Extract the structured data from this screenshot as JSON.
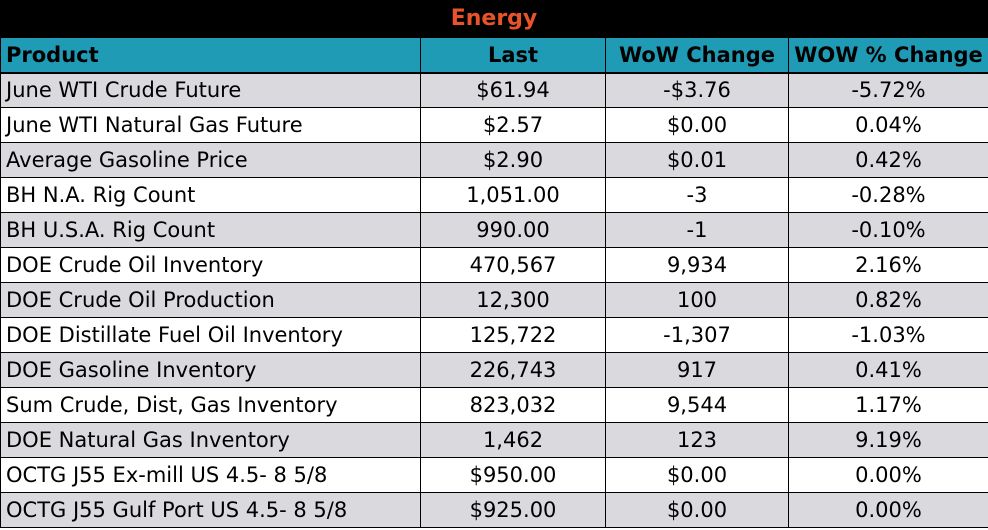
{
  "title": "Energy",
  "colors": {
    "title_bg": "#000000",
    "title_text": "#e8532a",
    "header_bg": "#1f9bb6",
    "row_alt_bg": "#d9d9de",
    "row_bg": "#ffffff"
  },
  "headers": [
    "Product",
    "Last",
    "WoW Change",
    "WOW % Change"
  ],
  "rows": [
    [
      "June WTI Crude Future",
      "$61.94",
      "-$3.76",
      "-5.72%"
    ],
    [
      "June WTI Natural Gas Future",
      "$2.57",
      "$0.00",
      "0.04%"
    ],
    [
      "Average Gasoline Price",
      "$2.90",
      "$0.01",
      "0.42%"
    ],
    [
      "BH N.A. Rig Count",
      "1,051.00",
      "-3",
      "-0.28%"
    ],
    [
      "BH U.S.A. Rig Count",
      "990.00",
      "-1",
      "-0.10%"
    ],
    [
      "DOE Crude Oil Inventory",
      "470,567",
      "9,934",
      "2.16%"
    ],
    [
      "DOE Crude Oil Production",
      "12,300",
      "100",
      "0.82%"
    ],
    [
      "DOE Distillate Fuel Oil Inventory",
      "125,722",
      "-1,307",
      "-1.03%"
    ],
    [
      "DOE Gasoline Inventory",
      "226,743",
      "917",
      "0.41%"
    ],
    [
      "Sum Crude, Dist, Gas Inventory",
      "823,032",
      "9,544",
      "1.17%"
    ],
    [
      "DOE Natural Gas Inventory",
      "1,462",
      "123",
      "9.19%"
    ],
    [
      "OCTG J55 Ex-mill US 4.5- 8 5/8",
      "$950.00",
      "$0.00",
      "0.00%"
    ],
    [
      "OCTG J55 Gulf Port US 4.5- 8 5/8",
      "$925.00",
      "$0.00",
      "0.00%"
    ]
  ]
}
